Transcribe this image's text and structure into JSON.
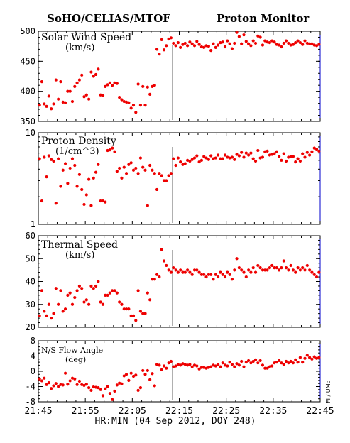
{
  "header": {
    "left_title": "SoHO/CELIAS/MTOF",
    "right_title": "Proton Monitor"
  },
  "x_axis": {
    "label": "HR:MIN (04 Sep 2012, DOY 248)",
    "ticks": [
      "21:45",
      "21:55",
      "22:05",
      "22:15",
      "22:25",
      "22:35",
      "22:45"
    ],
    "range_minutes": [
      0,
      60
    ],
    "marker_minute": 28.5
  },
  "side_label": "FI / UMd",
  "colors": {
    "points": "#ee0000",
    "axes": "#000000",
    "frame": "#0000cc",
    "marker": "#aaaaaa"
  },
  "chart_data": [
    {
      "type": "scatter",
      "title": "Solar Wind Speed",
      "unit": "(km/s)",
      "ylim": [
        350,
        500
      ],
      "yticks": [
        "350",
        "400",
        "450",
        "500"
      ],
      "x": [
        0,
        0.5,
        1,
        1.5,
        2,
        2.5,
        3,
        3.5,
        4,
        4.5,
        5,
        5.5,
        6,
        6.5,
        7,
        7.5,
        8,
        8.5,
        9,
        9.5,
        10,
        10.5,
        11,
        11.5,
        12,
        12.5,
        13,
        13.5,
        14,
        14.5,
        15,
        15.5,
        16,
        16.5,
        17,
        17.5,
        18,
        18.5,
        19,
        19.5,
        20,
        20.5,
        21,
        21.5,
        22,
        22.5,
        23,
        23.5,
        24,
        24.5,
        25,
        25.5,
        26,
        26.5,
        27,
        27.5,
        28,
        28.5,
        29,
        29.5,
        30,
        30.5,
        31,
        31.5,
        32,
        32.5,
        33,
        33.5,
        34,
        34.5,
        35,
        35.5,
        36,
        36.5,
        37,
        37.5,
        38,
        38.5,
        39,
        39.5,
        40,
        40.5,
        41,
        41.5,
        42,
        42.5,
        43,
        43.5,
        44,
        44.5,
        45,
        45.5,
        46,
        46.5,
        47,
        47.5,
        48,
        48.5,
        49,
        49.5,
        50,
        50.5,
        51,
        51.5,
        52,
        52.5,
        53,
        53.5,
        54,
        54.5,
        55,
        55.5,
        56,
        56.5,
        57,
        57.5,
        58,
        58.5,
        59,
        59.5
      ],
      "values": [
        377,
        416,
        379,
        375,
        392,
        371,
        379,
        419,
        387,
        416,
        382,
        381,
        400,
        400,
        383,
        408,
        414,
        419,
        427,
        391,
        394,
        387,
        432,
        425,
        428,
        437,
        394,
        393,
        408,
        411,
        414,
        410,
        414,
        413,
        390,
        386,
        383,
        382,
        381,
        372,
        377,
        365,
        412,
        377,
        408,
        377,
        407,
        395,
        408,
        410,
        470,
        462,
        486,
        469,
        476,
        487,
        489,
        480,
        476,
        481,
        473,
        478,
        480,
        476,
        482,
        479,
        476,
        483,
        478,
        474,
        473,
        476,
        475,
        468,
        479,
        473,
        477,
        481,
        482,
        474,
        484,
        479,
        471,
        480,
        498,
        491,
        479,
        494,
        483,
        479,
        476,
        484,
        480,
        492,
        490,
        477,
        484,
        482,
        481,
        484,
        482,
        478,
        477,
        474,
        480,
        484,
        480,
        477,
        478,
        481,
        484,
        481,
        478,
        484,
        480,
        479,
        479,
        477,
        476,
        478
      ]
    },
    {
      "type": "scatter",
      "title": "Proton Density",
      "unit": "(1/cm^3)",
      "ylim": [
        1,
        10
      ],
      "yscale": "log",
      "yticks": [
        "1",
        "10"
      ],
      "x": [
        0,
        0.5,
        1,
        1.5,
        2,
        2.5,
        3,
        3.5,
        4,
        4.5,
        5,
        5.5,
        6,
        6.5,
        7,
        7.5,
        8,
        8.5,
        9,
        9.5,
        10,
        10.5,
        11,
        11.5,
        12,
        12.5,
        13,
        13.5,
        14,
        14.5,
        15,
        15.5,
        16,
        16.5,
        17,
        17.5,
        18,
        18.5,
        19,
        19.5,
        20,
        20.5,
        21,
        21.5,
        22,
        22.5,
        23,
        23.5,
        24,
        24.5,
        25,
        25.5,
        26,
        26.5,
        27,
        27.5,
        28,
        28.5,
        29,
        29.5,
        30,
        30.5,
        31,
        31.5,
        32,
        32.5,
        33,
        33.5,
        34,
        34.5,
        35,
        35.5,
        36,
        36.5,
        37,
        37.5,
        38,
        38.5,
        39,
        39.5,
        40,
        40.5,
        41,
        41.5,
        42,
        42.5,
        43,
        43.5,
        44,
        44.5,
        45,
        45.5,
        46,
        46.5,
        47,
        47.5,
        48,
        48.5,
        49,
        49.5,
        50,
        50.5,
        51,
        51.5,
        52,
        52.5,
        53,
        53.5,
        54,
        54.5,
        55,
        55.5,
        56,
        56.5,
        57,
        57.5,
        58,
        58.5,
        59,
        59.5
      ],
      "values": [
        5.2,
        1.8,
        5.4,
        3.3,
        5.6,
        5.1,
        4.9,
        1.7,
        5.2,
        2.6,
        3.9,
        4.6,
        2.8,
        4.1,
        5.2,
        4.4,
        2.6,
        3.5,
        2.4,
        1.65,
        2.1,
        3.1,
        1.6,
        3.2,
        3.7,
        4.5,
        1.8,
        1.8,
        1.75,
        6.4,
        6.5,
        6.8,
        6.2,
        3.8,
        4.1,
        3.2,
        4.2,
        3.6,
        4.5,
        4.7,
        3.9,
        4.1,
        3.6,
        5.3,
        4.2,
        3.9,
        1.6,
        4.4,
        3.9,
        3.6,
        2.4,
        3.6,
        3.4,
        3.0,
        3.0,
        3.4,
        3.6,
        5.2,
        4.4,
        5.3,
        4.8,
        4.5,
        4.6,
        5.0,
        4.9,
        5.1,
        5.3,
        5.6,
        4.8,
        5.0,
        5.5,
        5.3,
        5.1,
        5.6,
        5.2,
        5.3,
        5.7,
        5.2,
        5.2,
        5.7,
        5.4,
        5.3,
        5.4,
        5.1,
        5.8,
        5.6,
        6.1,
        5.4,
        6.0,
        5.7,
        6.0,
        5.2,
        4.9,
        6.4,
        5.3,
        5.4,
        6.2,
        6.3,
        5.7,
        5.8,
        5.9,
        6.2,
        5.5,
        5.0,
        5.9,
        4.9,
        5.4,
        5.5,
        5.5,
        4.8,
        5.2,
        4.9,
        5.9,
        5.4,
        6.1,
        5.7,
        6.2,
        6.8,
        6.6,
        6.3
      ]
    },
    {
      "type": "scatter",
      "title": "Thermal Speed",
      "unit": "(km/s)",
      "ylim": [
        20,
        60
      ],
      "yticks": [
        "20",
        "30",
        "40",
        "50",
        "60"
      ],
      "x": [
        0,
        0.5,
        1,
        1.5,
        2,
        2.5,
        3,
        3.5,
        4,
        4.5,
        5,
        5.5,
        6,
        6.5,
        7,
        7.5,
        8,
        8.5,
        9,
        9.5,
        10,
        10.5,
        11,
        11.5,
        12,
        12.5,
        13,
        13.5,
        14,
        14.5,
        15,
        15.5,
        16,
        16.5,
        17,
        17.5,
        18,
        18.5,
        19,
        19.5,
        20,
        20.5,
        21,
        21.5,
        22,
        22.5,
        23,
        23.5,
        24,
        24.5,
        25,
        25.5,
        26,
        26.5,
        27,
        27.5,
        28,
        28.5,
        29,
        29.5,
        30,
        30.5,
        31,
        31.5,
        32,
        32.5,
        33,
        33.5,
        34,
        34.5,
        35,
        35.5,
        36,
        36.5,
        37,
        37.5,
        38,
        38.5,
        39,
        39.5,
        40,
        40.5,
        41,
        41.5,
        42,
        42.5,
        43,
        43.5,
        44,
        44.5,
        45,
        45.5,
        46,
        46.5,
        47,
        47.5,
        48,
        48.5,
        49,
        49.5,
        50,
        50.5,
        51,
        51.5,
        52,
        52.5,
        53,
        53.5,
        54,
        54.5,
        55,
        55.5,
        56,
        56.5,
        57,
        57.5,
        58,
        58.5,
        59,
        59.5
      ],
      "values": [
        25,
        36,
        27,
        25,
        30,
        24,
        26,
        37,
        30,
        36,
        27,
        28,
        34,
        35,
        30,
        33,
        36,
        38,
        37,
        31,
        32,
        30,
        38,
        37,
        38,
        40,
        31,
        30,
        34,
        34,
        35,
        36,
        36,
        35,
        31,
        30,
        28,
        28,
        28,
        25,
        25,
        23,
        36,
        27,
        26,
        26,
        35,
        32,
        41,
        41,
        43,
        42,
        54,
        49,
        47,
        45,
        44,
        46,
        45,
        44,
        45,
        44,
        44,
        45,
        44,
        43,
        45,
        45,
        44,
        43,
        43,
        42,
        43,
        43,
        41,
        43,
        42,
        44,
        43,
        42,
        44,
        43,
        41,
        45,
        50,
        46,
        45,
        44,
        42,
        45,
        44,
        46,
        44,
        47,
        46,
        45,
        45,
        45,
        46,
        47,
        46,
        46,
        45,
        46,
        49,
        46,
        45,
        47,
        45,
        44,
        46,
        45,
        46,
        45,
        47,
        45,
        44,
        43,
        42,
        44
      ]
    },
    {
      "type": "scatter",
      "title": "N/S Flow Angle",
      "unit": "(deg)",
      "ylim": [
        -8,
        8
      ],
      "yticks": [
        "-8",
        "-4",
        "0",
        "4",
        "8"
      ],
      "x": [
        0,
        0.5,
        1,
        1.5,
        2,
        2.5,
        3,
        3.5,
        4,
        4.5,
        5,
        5.5,
        6,
        6.5,
        7,
        7.5,
        8,
        8.5,
        9,
        9.5,
        10,
        10.5,
        11,
        11.5,
        12,
        12.5,
        13,
        13.5,
        14,
        14.5,
        15,
        15.5,
        16,
        16.5,
        17,
        17.5,
        18,
        18.5,
        19,
        19.5,
        20,
        20.5,
        21,
        21.5,
        22,
        22.5,
        23,
        23.5,
        24,
        24.5,
        25,
        25.5,
        26,
        26.5,
        27,
        27.5,
        28,
        28.5,
        29,
        29.5,
        30,
        30.5,
        31,
        31.5,
        32,
        32.5,
        33,
        33.5,
        34,
        34.5,
        35,
        35.5,
        36,
        36.5,
        37,
        37.5,
        38,
        38.5,
        39,
        39.5,
        40,
        40.5,
        41,
        41.5,
        42,
        42.5,
        43,
        43.5,
        44,
        44.5,
        45,
        45.5,
        46,
        46.5,
        47,
        47.5,
        48,
        48.5,
        49,
        49.5,
        50,
        50.5,
        51,
        51.5,
        52,
        52.5,
        53,
        53.5,
        54,
        54.5,
        55,
        55.5,
        56,
        56.5,
        57,
        57.5,
        58,
        58.5,
        59,
        59.5
      ],
      "values": [
        -2,
        -2.5,
        -1.8,
        -3.5,
        -3,
        -4.5,
        -3.8,
        -3.2,
        -4,
        -3.5,
        -3.6,
        -0.5,
        -3.4,
        -2.5,
        -1.8,
        -2,
        -3.5,
        -2.6,
        -3.5,
        -3.7,
        -3.4,
        -4.3,
        -5,
        -4.1,
        -4.2,
        -4.3,
        -4.8,
        -6.4,
        -4.6,
        -4,
        -5.8,
        -7.4,
        -5.2,
        -3.6,
        -3.1,
        -3.3,
        -1.2,
        -0.8,
        -2.4,
        -0.5,
        -1.3,
        -1,
        -5,
        -4.3,
        0.2,
        -0.8,
        0.2,
        -2.2,
        -0.6,
        -3.8,
        1.8,
        1.6,
        0.4,
        1.4,
        0.8,
        2.2,
        2.6,
        1.2,
        1.4,
        1.8,
        1.6,
        2,
        1.8,
        1.6,
        1.8,
        1.2,
        1.6,
        1.4,
        0.6,
        1,
        1,
        0.8,
        1,
        1.2,
        1.6,
        1.4,
        1.8,
        1.2,
        2.2,
        1.6,
        1.4,
        2.4,
        1.8,
        1.2,
        2,
        1.6,
        2.6,
        1.2,
        2.4,
        2.8,
        2.2,
        2.6,
        3,
        2.2,
        2.8,
        1.6,
        0.8,
        0.8,
        1.2,
        1.4,
        2.2,
        2.4,
        2.8,
        2.2,
        1.8,
        2.6,
        2.2,
        2.6,
        2.2,
        3,
        2.4,
        3.6,
        2.4,
        3.4,
        4.2,
        3.6,
        3.2,
        3.8,
        3.4,
        3.6
      ]
    }
  ]
}
